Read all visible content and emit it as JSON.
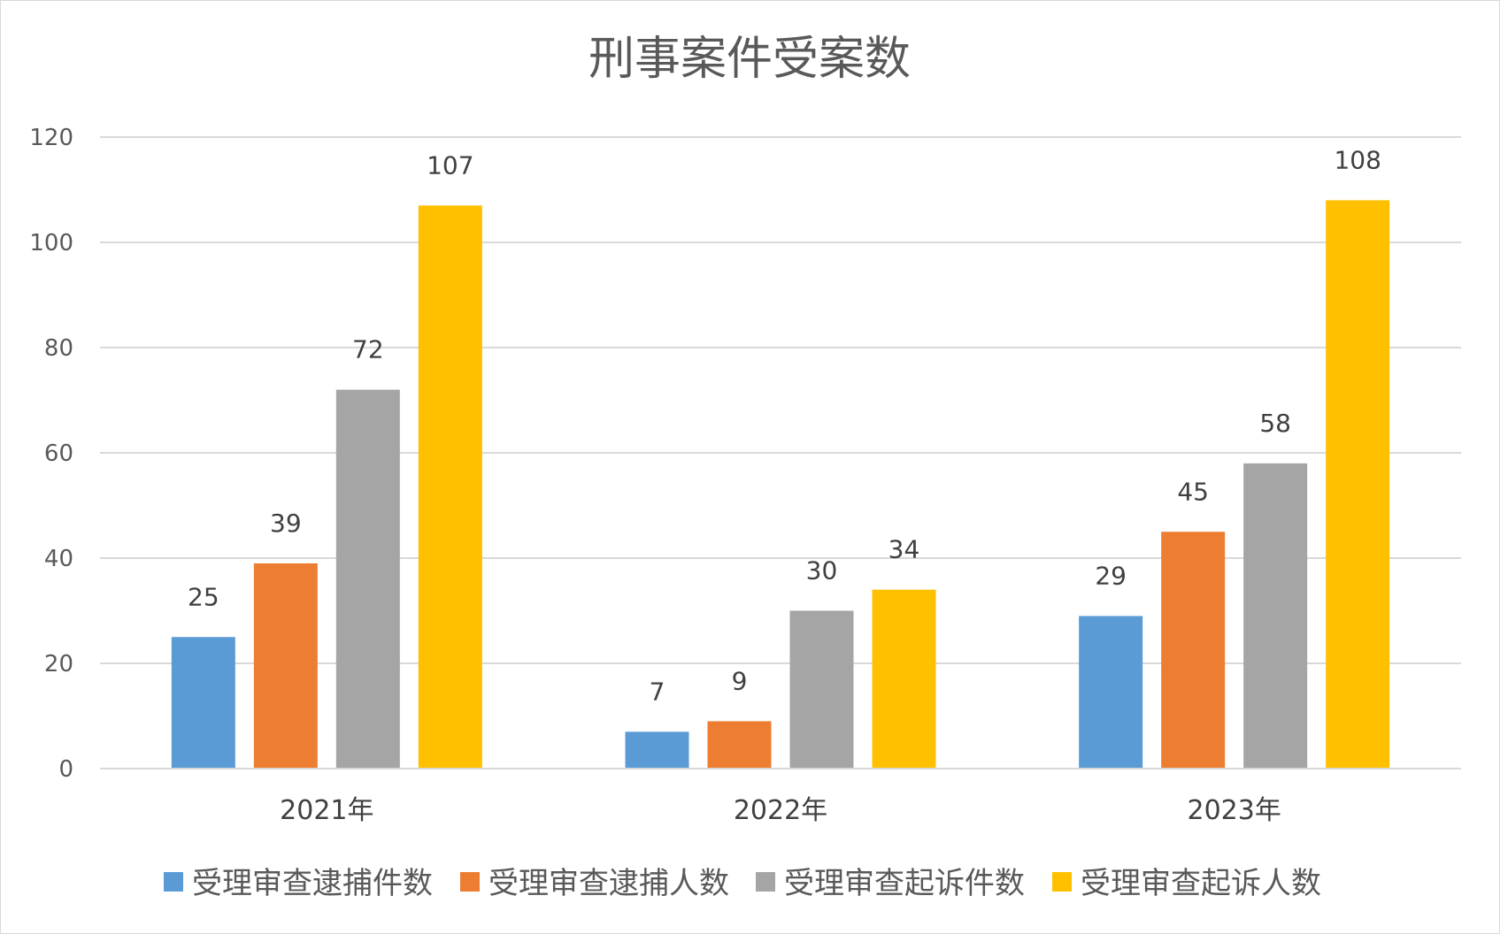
{
  "chart_data": {
    "type": "bar",
    "title": "刑事案件受案数",
    "xlabel": "",
    "ylabel": "",
    "categories": [
      "2021年",
      "2022年",
      "2023年"
    ],
    "series": [
      {
        "name": "受理审查逮捕件数",
        "color": "#5B9BD5",
        "values": [
          25,
          7,
          29
        ]
      },
      {
        "name": "受理审查逮捕人数",
        "color": "#ED7D31",
        "values": [
          39,
          9,
          45
        ]
      },
      {
        "name": "受理审查起诉件数",
        "color": "#A5A5A5",
        "values": [
          72,
          30,
          58
        ]
      },
      {
        "name": "受理审查起诉人数",
        "color": "#FFC000",
        "values": [
          107,
          34,
          108
        ]
      }
    ],
    "ylim": [
      0,
      120
    ],
    "yticks": [
      0,
      20,
      40,
      60,
      80,
      100,
      120
    ],
    "grid": true,
    "legend_position": "bottom",
    "data_labels": true
  }
}
